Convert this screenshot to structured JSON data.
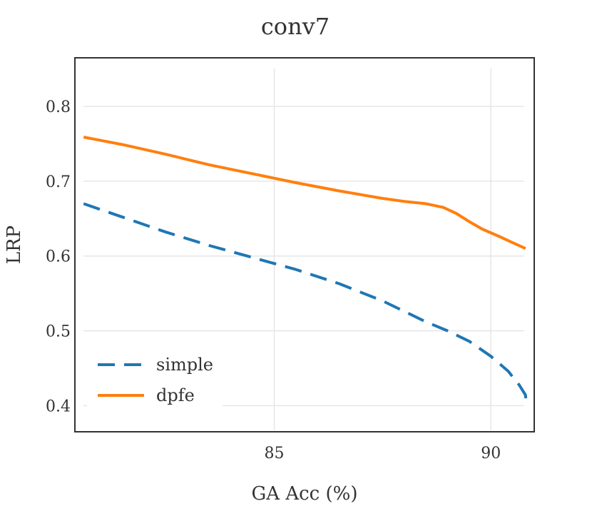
{
  "chart_data": {
    "type": "line",
    "title": "conv7",
    "xlabel": "GA Acc (%)",
    "ylabel": "LRP",
    "xlim": [
      80.4,
      91.0
    ],
    "ylim": [
      0.365,
      0.865
    ],
    "xticks": [
      85,
      90
    ],
    "yticks": [
      0.4,
      0.5,
      0.6,
      0.7,
      0.8
    ],
    "xtick_labels": [
      "85",
      "90"
    ],
    "ytick_labels": [
      "0.4",
      "0.5",
      "0.6",
      "0.7",
      "0.8"
    ],
    "grid": true,
    "legend_position": "lower-left",
    "series": [
      {
        "name": "simple",
        "color": "#1f77b4",
        "style": "dashed",
        "x": [
          80.6,
          81.5,
          82.5,
          83.5,
          84.5,
          85.5,
          86.5,
          87.5,
          88.5,
          89.0,
          89.5,
          90.0,
          90.4,
          90.65,
          90.8,
          90.82
        ],
        "y": [
          0.67,
          0.652,
          0.632,
          0.614,
          0.598,
          0.582,
          0.563,
          0.54,
          0.512,
          0.5,
          0.486,
          0.466,
          0.446,
          0.428,
          0.414,
          0.4
        ]
      },
      {
        "name": "dpfe",
        "color": "#ff7f0e",
        "style": "solid",
        "x": [
          80.6,
          81.5,
          82.5,
          83.5,
          84.5,
          85.5,
          86.5,
          87.5,
          88.0,
          88.5,
          88.9,
          89.2,
          89.5,
          89.8,
          90.2,
          90.5,
          90.8
        ],
        "y": [
          0.759,
          0.749,
          0.736,
          0.722,
          0.71,
          0.698,
          0.687,
          0.677,
          0.673,
          0.67,
          0.665,
          0.657,
          0.646,
          0.636,
          0.626,
          0.618,
          0.61
        ]
      }
    ]
  }
}
